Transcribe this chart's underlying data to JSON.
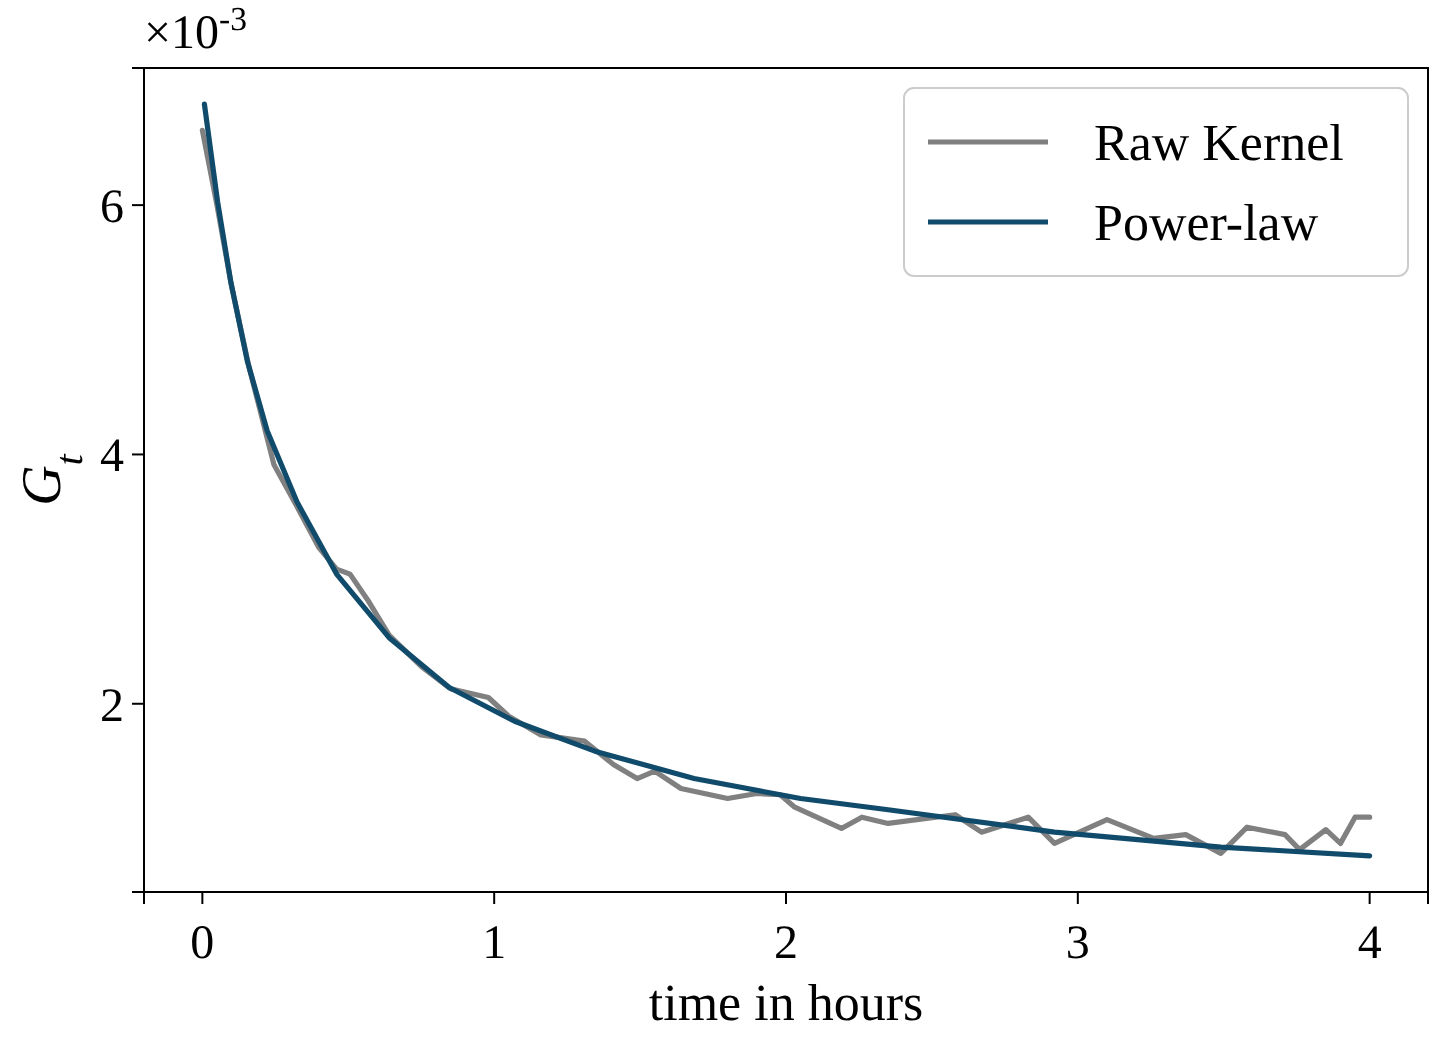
{
  "chart_data": {
    "type": "line",
    "xlabel": "time in hours",
    "ylabel": "G$_{t}$",
    "annotations": [
      "×10$^{-3}$"
    ],
    "xlim": [
      -0.2,
      4.2
    ],
    "ylim": [
      0.49,
      7.1
    ],
    "xticks": [
      0,
      1,
      2,
      3,
      4
    ],
    "yticks": [
      2,
      4,
      6
    ],
    "legend": "top right",
    "grid": false,
    "line_style": "solid",
    "marker": "none",
    "series": [
      {
        "name": "Raw Kernel",
        "color": "#808080",
        "x": [
          0,
          0.05,
          0.1,
          0.16,
          0.245,
          0.32,
          0.4,
          0.46,
          0.506,
          0.57,
          0.64,
          0.75,
          0.85,
          0.98,
          1.05,
          1.16,
          1.31,
          1.41,
          1.49,
          1.55,
          1.64,
          1.8,
          1.9,
          1.98,
          2.03,
          2.19,
          2.26,
          2.35,
          2.58,
          2.67,
          2.83,
          2.92,
          3.1,
          3.26,
          3.37,
          3.49,
          3.58,
          3.71,
          3.76,
          3.85,
          3.9,
          3.95,
          4.0
        ],
        "values": [
          6.6,
          6.0,
          5.35,
          4.7,
          3.92,
          3.6,
          3.25,
          3.08,
          3.04,
          2.82,
          2.55,
          2.3,
          2.12,
          2.05,
          1.9,
          1.75,
          1.7,
          1.51,
          1.4,
          1.46,
          1.32,
          1.24,
          1.28,
          1.27,
          1.17,
          1.0,
          1.09,
          1.04,
          1.11,
          0.97,
          1.09,
          0.88,
          1.07,
          0.92,
          0.95,
          0.8,
          1.01,
          0.95,
          0.83,
          0.99,
          0.88,
          1.09,
          1.09
        ]
      },
      {
        "name": "Power-law",
        "color": "#114b6b",
        "x": [
          0.007,
          0.052,
          0.097,
          0.154,
          0.222,
          0.324,
          0.46,
          0.64,
          0.846,
          1.07,
          1.345,
          1.685,
          2.05,
          2.35,
          2.92,
          3.49,
          4.0
        ],
        "values": [
          6.81,
          6.03,
          5.39,
          4.75,
          4.19,
          3.62,
          3.04,
          2.53,
          2.13,
          1.86,
          1.62,
          1.4,
          1.24,
          1.15,
          0.97,
          0.85,
          0.78
        ]
      }
    ]
  }
}
